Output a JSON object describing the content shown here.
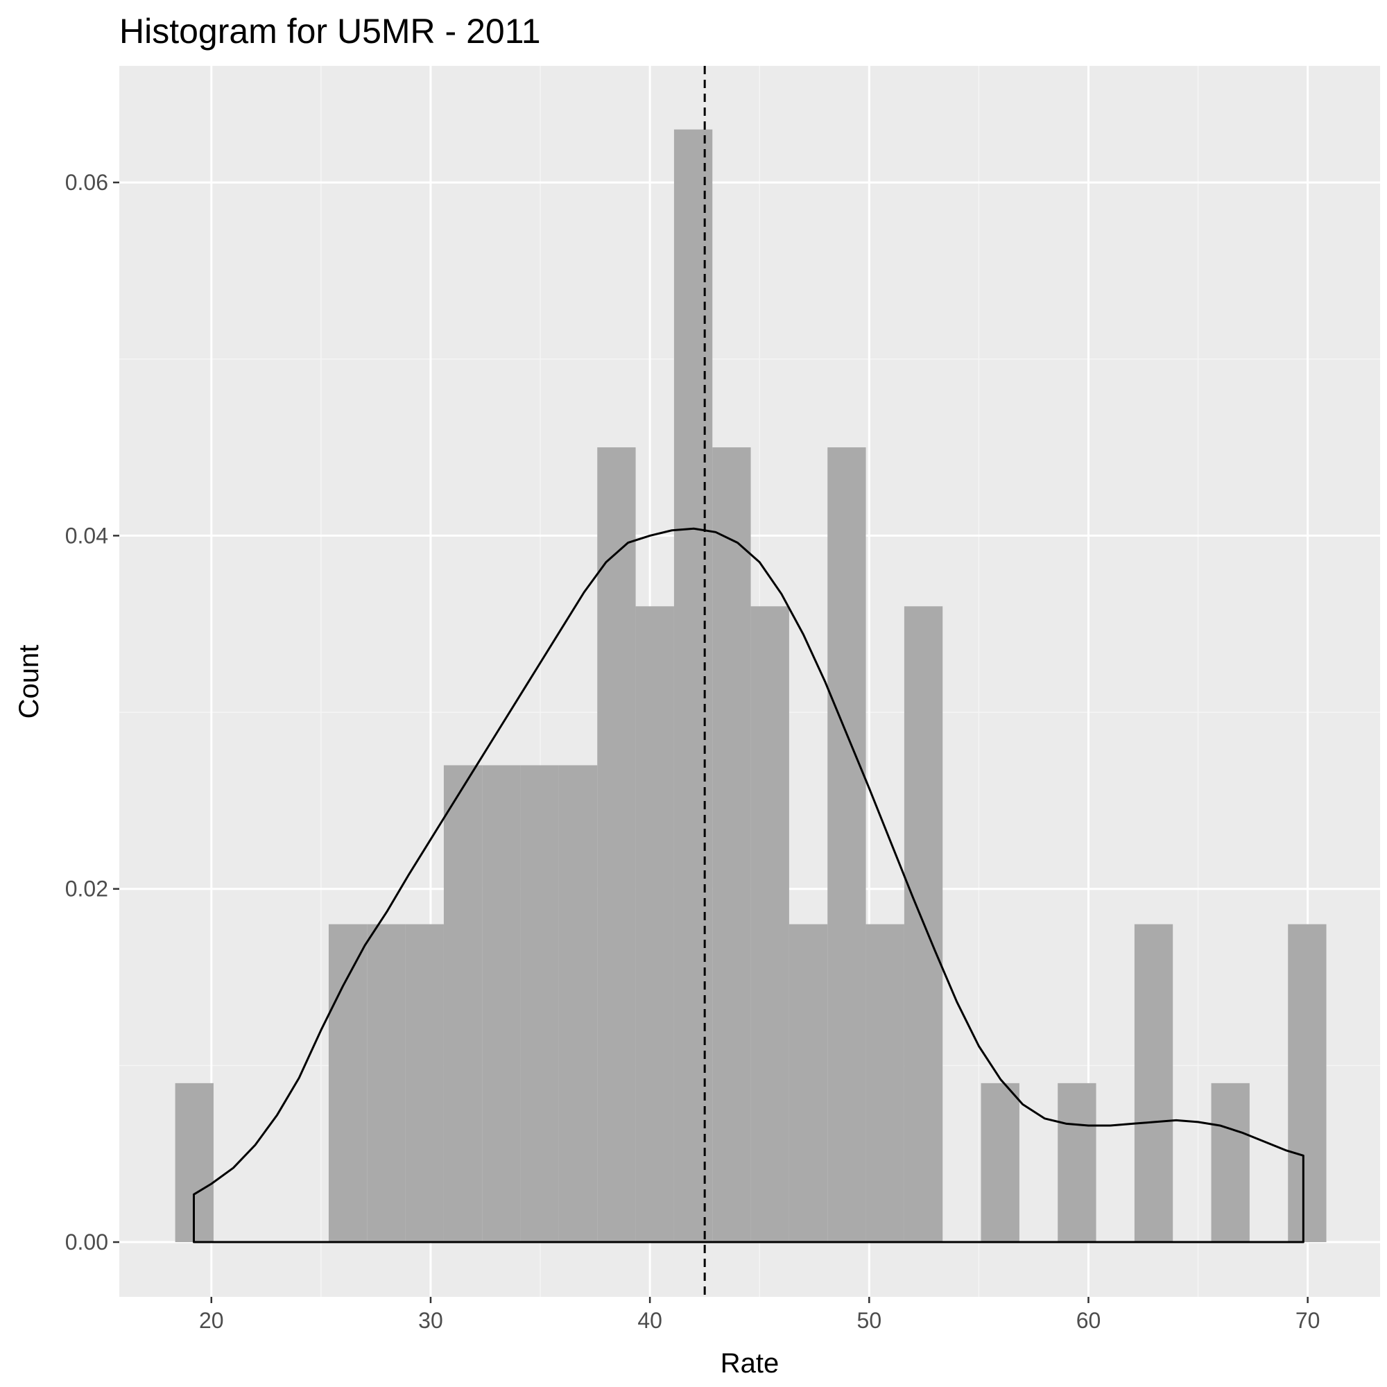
{
  "chart_data": {
    "type": "bar",
    "title": "Histogram for U5MR - 2011",
    "xlabel": "Rate",
    "ylabel": "Count",
    "xlim": [
      15.8,
      73.3
    ],
    "ylim": [
      -0.0031,
      0.0666
    ],
    "x_ticks": [
      20,
      30,
      40,
      50,
      60,
      70
    ],
    "x_tick_labels": [
      "20",
      "30",
      "40",
      "50",
      "60",
      "70"
    ],
    "y_ticks": [
      0.0,
      0.02,
      0.04,
      0.06
    ],
    "y_tick_labels": [
      "0.00",
      "0.02",
      "0.04",
      "0.06"
    ],
    "bin_width": 1.75,
    "bins": [
      {
        "start": 18.35,
        "density": 0.009
      },
      {
        "start": 20.1,
        "density": 0.0
      },
      {
        "start": 21.85,
        "density": 0.0
      },
      {
        "start": 23.6,
        "density": 0.0
      },
      {
        "start": 25.35,
        "density": 0.018
      },
      {
        "start": 27.1,
        "density": 0.018
      },
      {
        "start": 28.85,
        "density": 0.018
      },
      {
        "start": 30.6,
        "density": 0.027
      },
      {
        "start": 32.35,
        "density": 0.027
      },
      {
        "start": 34.1,
        "density": 0.027
      },
      {
        "start": 35.85,
        "density": 0.027
      },
      {
        "start": 37.6,
        "density": 0.045
      },
      {
        "start": 39.35,
        "density": 0.036
      },
      {
        "start": 41.1,
        "density": 0.063
      },
      {
        "start": 42.85,
        "density": 0.045
      },
      {
        "start": 44.6,
        "density": 0.036
      },
      {
        "start": 46.35,
        "density": 0.018
      },
      {
        "start": 48.1,
        "density": 0.045
      },
      {
        "start": 49.85,
        "density": 0.018
      },
      {
        "start": 51.6,
        "density": 0.036
      },
      {
        "start": 53.35,
        "density": 0.0
      },
      {
        "start": 55.1,
        "density": 0.009
      },
      {
        "start": 56.85,
        "density": 0.0
      },
      {
        "start": 58.6,
        "density": 0.009
      },
      {
        "start": 60.35,
        "density": 0.0
      },
      {
        "start": 62.1,
        "density": 0.018
      },
      {
        "start": 63.85,
        "density": 0.0
      },
      {
        "start": 65.6,
        "density": 0.009
      },
      {
        "start": 67.35,
        "density": 0.0
      },
      {
        "start": 69.1,
        "density": 0.018
      }
    ],
    "density_curve": [
      [
        19.2,
        0.0027
      ],
      [
        20,
        0.0033
      ],
      [
        21,
        0.0042
      ],
      [
        22,
        0.0055
      ],
      [
        23,
        0.0072
      ],
      [
        24,
        0.0093
      ],
      [
        25,
        0.012
      ],
      [
        26,
        0.0145
      ],
      [
        27,
        0.0168
      ],
      [
        28,
        0.0187
      ],
      [
        29,
        0.0208
      ],
      [
        30,
        0.0228
      ],
      [
        31,
        0.0248
      ],
      [
        32,
        0.0268
      ],
      [
        33,
        0.0288
      ],
      [
        34,
        0.0308
      ],
      [
        35,
        0.0328
      ],
      [
        36,
        0.0348
      ],
      [
        37,
        0.0368
      ],
      [
        38,
        0.0385
      ],
      [
        39,
        0.0396
      ],
      [
        40,
        0.04
      ],
      [
        41,
        0.0403
      ],
      [
        42,
        0.0404
      ],
      [
        43,
        0.0402
      ],
      [
        44,
        0.0396
      ],
      [
        45,
        0.0385
      ],
      [
        46,
        0.0367
      ],
      [
        47,
        0.0344
      ],
      [
        48,
        0.0317
      ],
      [
        49,
        0.0287
      ],
      [
        50,
        0.0257
      ],
      [
        51,
        0.0226
      ],
      [
        52,
        0.0195
      ],
      [
        53,
        0.0165
      ],
      [
        54,
        0.0136
      ],
      [
        55,
        0.0111
      ],
      [
        56,
        0.0092
      ],
      [
        57,
        0.0078
      ],
      [
        58,
        0.007
      ],
      [
        59,
        0.0067
      ],
      [
        60,
        0.0066
      ],
      [
        61,
        0.0066
      ],
      [
        62,
        0.0067
      ],
      [
        63,
        0.0068
      ],
      [
        64,
        0.0069
      ],
      [
        65,
        0.0068
      ],
      [
        66,
        0.0066
      ],
      [
        67,
        0.0062
      ],
      [
        68,
        0.0057
      ],
      [
        69,
        0.0052
      ],
      [
        69.8,
        0.0049
      ]
    ],
    "mean_line_x": 42.5,
    "colors": {
      "panel_background": "#ebebeb",
      "grid_major": "#ffffff",
      "grid_minor": "#f5f5f5",
      "bar_fill": "#aaaaaa",
      "density_line": "#000000",
      "mean_line": "#000000",
      "tick_text": "#4d4d4d"
    },
    "grid": true,
    "legend": "none"
  }
}
